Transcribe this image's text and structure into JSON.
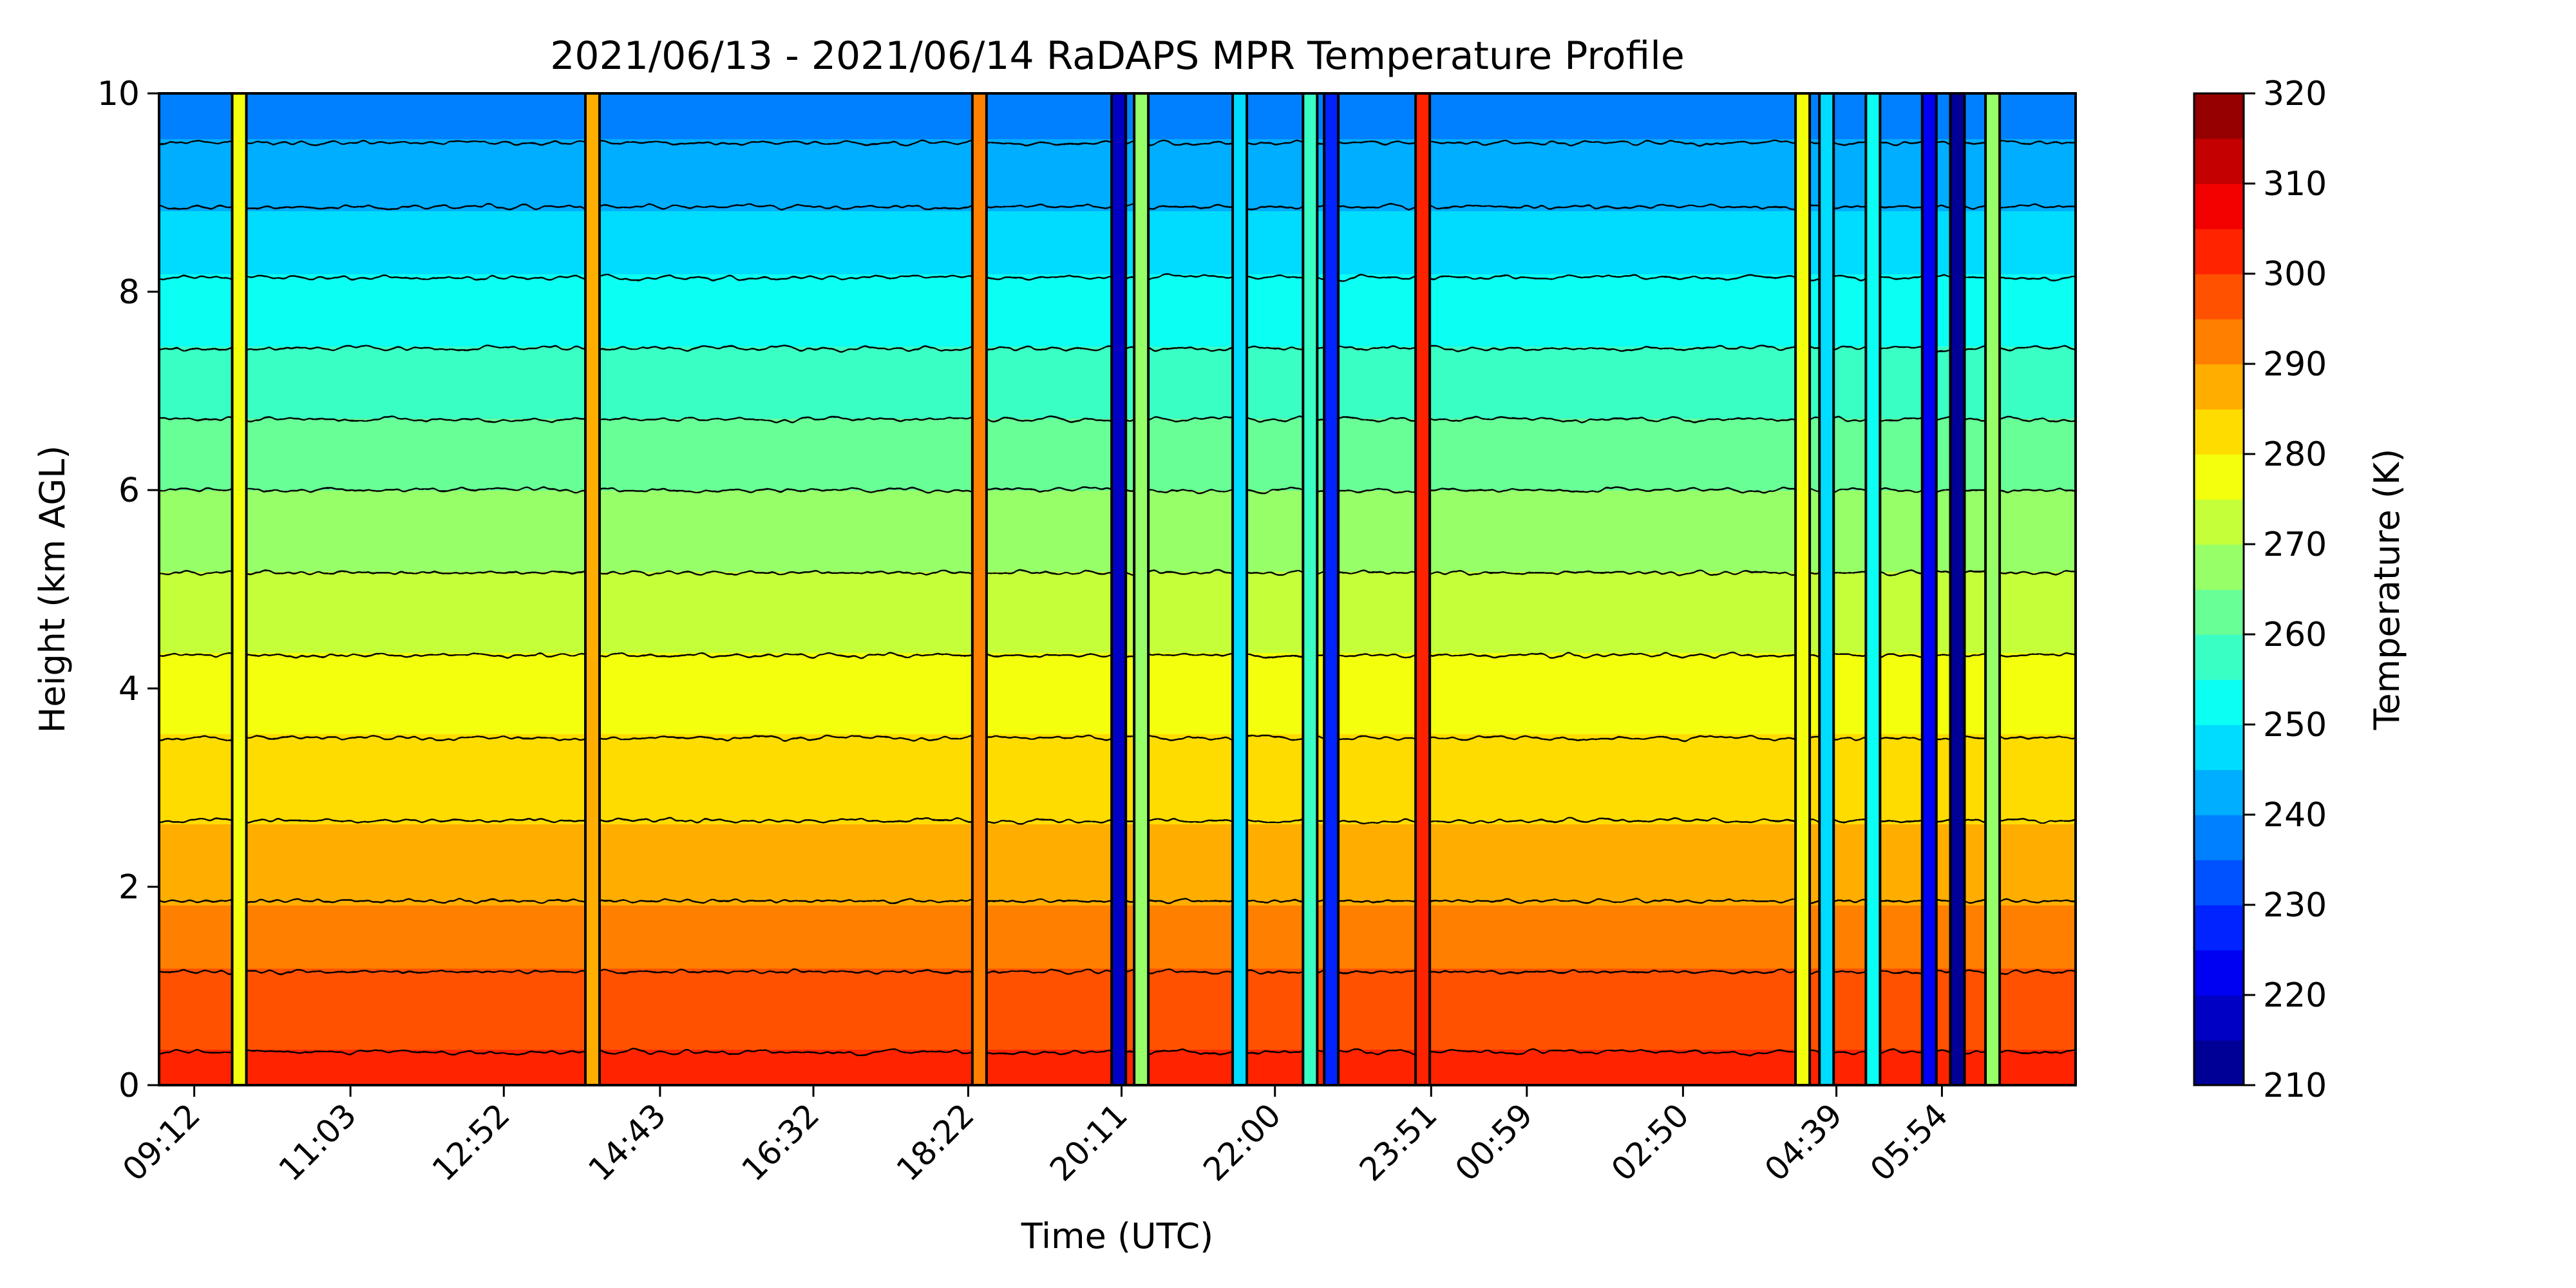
{
  "chart_data": {
    "type": "heatmap",
    "title": "2021/06/13 - 2021/06/14 RaDAPS MPR Temperature Profile",
    "xlabel": "Time (UTC)",
    "ylabel": "Height (km AGL)",
    "x_tick_labels": [
      "09:12",
      "11:03",
      "12:52",
      "14:43",
      "16:32",
      "18:22",
      "20:11",
      "22:00",
      "23:51",
      "00:59",
      "02:50",
      "04:39",
      "05:54"
    ],
    "y_ticks": [
      0,
      2,
      4,
      6,
      8,
      10
    ],
    "ylim": [
      0,
      10
    ],
    "colorbar": {
      "label": "Temperature (K)",
      "ticks": [
        210,
        220,
        230,
        240,
        250,
        260,
        270,
        280,
        290,
        300,
        310,
        320
      ],
      "range": [
        210,
        320
      ],
      "levels": 22,
      "colormap": "jet"
    },
    "background_profile": {
      "heights_km": [
        0,
        1,
        2,
        3,
        4,
        5,
        6,
        7,
        8,
        9,
        10
      ],
      "temperature_K": [
        302,
        296,
        289,
        283,
        277,
        271,
        265,
        258,
        251,
        244,
        236
      ]
    },
    "anomaly_columns": [
      {
        "time": "09:44",
        "temperature_K": 275
      },
      {
        "time": "13:55",
        "temperature_K": 285
      },
      {
        "time": "18:30",
        "temperature_K": 290
      },
      {
        "time": "20:09",
        "temperature_K": 215
      },
      {
        "time": "20:25",
        "temperature_K": 265
      },
      {
        "time": "21:35",
        "temperature_K": 245
      },
      {
        "time": "22:25",
        "temperature_K": 255
      },
      {
        "time": "22:40",
        "temperature_K": 225
      },
      {
        "time": "23:45",
        "temperature_K": 300
      },
      {
        "time": "04:15",
        "temperature_K": 275
      },
      {
        "time": "04:32",
        "temperature_K": 245
      },
      {
        "time": "05:05",
        "temperature_K": 250
      },
      {
        "time": "05:45",
        "temperature_K": 220
      },
      {
        "time": "06:05",
        "temperature_K": 212
      },
      {
        "time": "06:30",
        "temperature_K": 265
      }
    ]
  }
}
